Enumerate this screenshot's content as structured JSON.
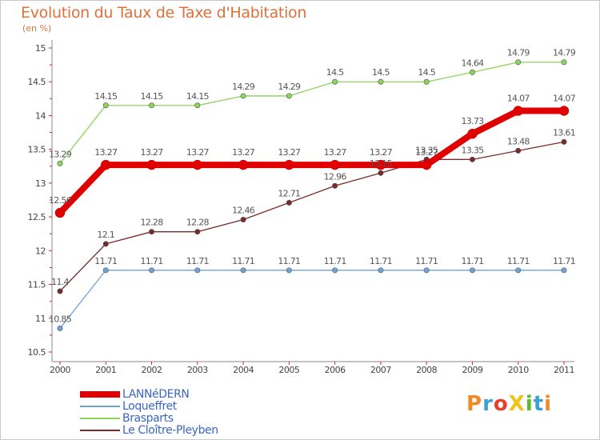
{
  "header": {
    "title": "Evolution du Taux de Taxe d'Habitation",
    "subtitle": "(en %)"
  },
  "chart_data": {
    "type": "line",
    "x": [
      "2000",
      "2001",
      "2002",
      "2003",
      "2004",
      "2005",
      "2006",
      "2007",
      "2008",
      "2009",
      "2010",
      "2011"
    ],
    "ylim": [
      10.5,
      15
    ],
    "yticks": [
      "10.5",
      "11",
      "11.5",
      "12",
      "12.5",
      "13",
      "13.5",
      "14",
      "14.5",
      "15"
    ],
    "grid": false,
    "legend_placement": "bottom-left",
    "series": [
      {
        "name": "LANNéDERN",
        "color": "#e00000",
        "values": [
          12.56,
          13.27,
          13.27,
          13.27,
          13.27,
          13.27,
          13.27,
          13.27,
          13.27,
          13.73,
          14.07,
          14.07
        ],
        "labels": [
          "12.56",
          "13.27",
          "13.27",
          "13.27",
          "13.27",
          "13.27",
          "13.27",
          "13.27",
          "13.27",
          "13.73",
          "14.07",
          "14.07"
        ]
      },
      {
        "name": "Loqueffret",
        "color": "#6fa3d6",
        "values": [
          10.85,
          11.71,
          11.71,
          11.71,
          11.71,
          11.71,
          11.71,
          11.71,
          11.71,
          11.71,
          11.71,
          11.71
        ],
        "labels": [
          "10.85",
          "11.71",
          "11.71",
          "11.71",
          "11.71",
          "11.71",
          "11.71",
          "11.71",
          "11.71",
          "11.71",
          "11.71",
          "11.71"
        ]
      },
      {
        "name": "Brasparts",
        "color": "#8cd45a",
        "values": [
          13.29,
          14.15,
          14.15,
          14.15,
          14.29,
          14.29,
          14.5,
          14.5,
          14.5,
          14.64,
          14.79,
          14.79
        ],
        "labels": [
          "13.29",
          "14.15",
          "14.15",
          "14.15",
          "14.29",
          "14.29",
          "14.5",
          "14.5",
          "14.5",
          "14.64",
          "14.79",
          "14.79"
        ]
      },
      {
        "name": "Le Cloître-Pleyben",
        "color": "#7a2a2a",
        "values": [
          11.4,
          12.1,
          12.28,
          12.28,
          12.46,
          12.71,
          12.96,
          13.15,
          13.35,
          13.35,
          13.48,
          13.61
        ],
        "labels": [
          "11.4",
          "12.1",
          "12.28",
          "12.28",
          "12.46",
          "12.71",
          "12.96",
          "13.15",
          "13.35",
          "13.35",
          "13.48",
          "13.61"
        ]
      }
    ]
  },
  "logo": {
    "text": "ProXiti",
    "letters": [
      "P",
      "r",
      "o",
      "X",
      "i",
      "t",
      "i"
    ],
    "colors": [
      "#f08a24",
      "#3aa0d8",
      "#e8402a",
      "#f2c21a",
      "#5cb82e",
      "#3aa0d8",
      "#f08a24"
    ]
  }
}
